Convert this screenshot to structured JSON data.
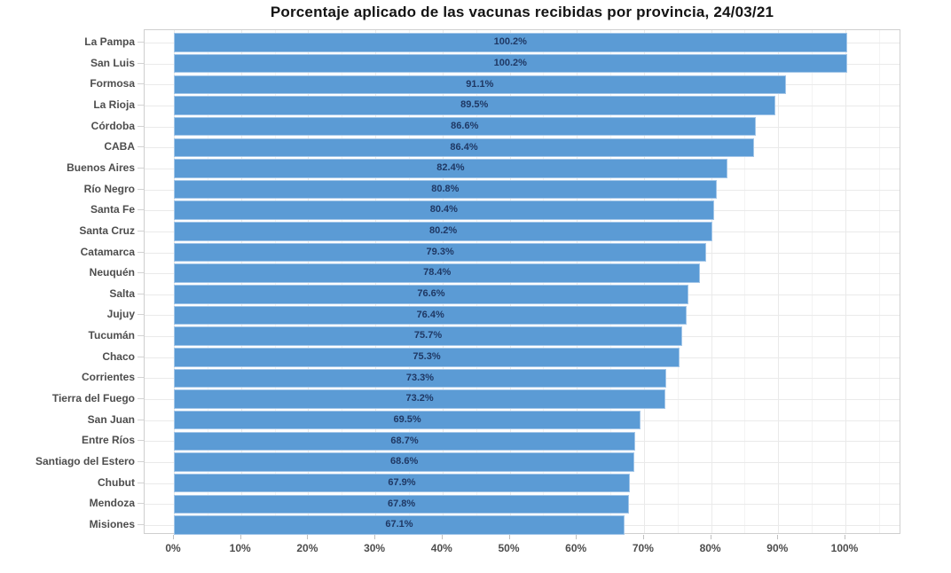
{
  "title": "Porcentaje aplicado de las vacunas recibidas por provincia, 24/03/21",
  "chart_data": {
    "type": "bar",
    "orientation": "horizontal",
    "title": "Porcentaje aplicado de las vacunas recibidas por provincia, 24/03/21",
    "xlabel": "",
    "ylabel": "",
    "categories": [
      "La Pampa",
      "San Luis",
      "Formosa",
      "La Rioja",
      "Córdoba",
      "CABA",
      "Buenos Aires",
      "Río Negro",
      "Santa Fe",
      "Santa Cruz",
      "Catamarca",
      "Neuquén",
      "Salta",
      "Jujuy",
      "Tucumán",
      "Chaco",
      "Corrientes",
      "Tierra del Fuego",
      "San Juan",
      "Entre Ríos",
      "Santiago del Estero",
      "Chubut",
      "Mendoza",
      "Misiones"
    ],
    "values": [
      100.2,
      100.2,
      91.1,
      89.5,
      86.6,
      86.4,
      82.4,
      80.8,
      80.4,
      80.2,
      79.3,
      78.4,
      76.6,
      76.4,
      75.7,
      75.3,
      73.3,
      73.2,
      69.5,
      68.7,
      68.6,
      67.9,
      67.8,
      67.1
    ],
    "value_labels": [
      "100.2%",
      "100.2%",
      "91.1%",
      "89.5%",
      "86.6%",
      "86.4%",
      "82.4%",
      "80.8%",
      "80.4%",
      "80.2%",
      "79.3%",
      "78.4%",
      "76.6%",
      "76.4%",
      "75.7%",
      "75.3%",
      "73.3%",
      "73.2%",
      "69.5%",
      "68.7%",
      "68.6%",
      "67.9%",
      "67.8%",
      "67.1%"
    ],
    "x_tick_labels": [
      "0%",
      "10%",
      "20%",
      "30%",
      "40%",
      "50%",
      "60%",
      "70%",
      "80%",
      "90%",
      "100%"
    ],
    "x_tick_values": [
      0,
      10,
      20,
      30,
      40,
      50,
      60,
      70,
      80,
      90,
      100
    ],
    "xlim": [
      -4.4,
      108.6
    ],
    "grid": true,
    "grid_minor_step": 5,
    "legend": false,
    "colors": {
      "bar_fill": "#5b9bd5",
      "bar_border": "#a3c6e8",
      "value_label_text": "#1f3864",
      "axis_text": "#4d4d4d",
      "title_text": "#141414",
      "panel_border": "#cfcfcf",
      "grid_major": "#eaeaea",
      "grid_minor": "#f3f3f3",
      "background": "#ffffff"
    }
  }
}
